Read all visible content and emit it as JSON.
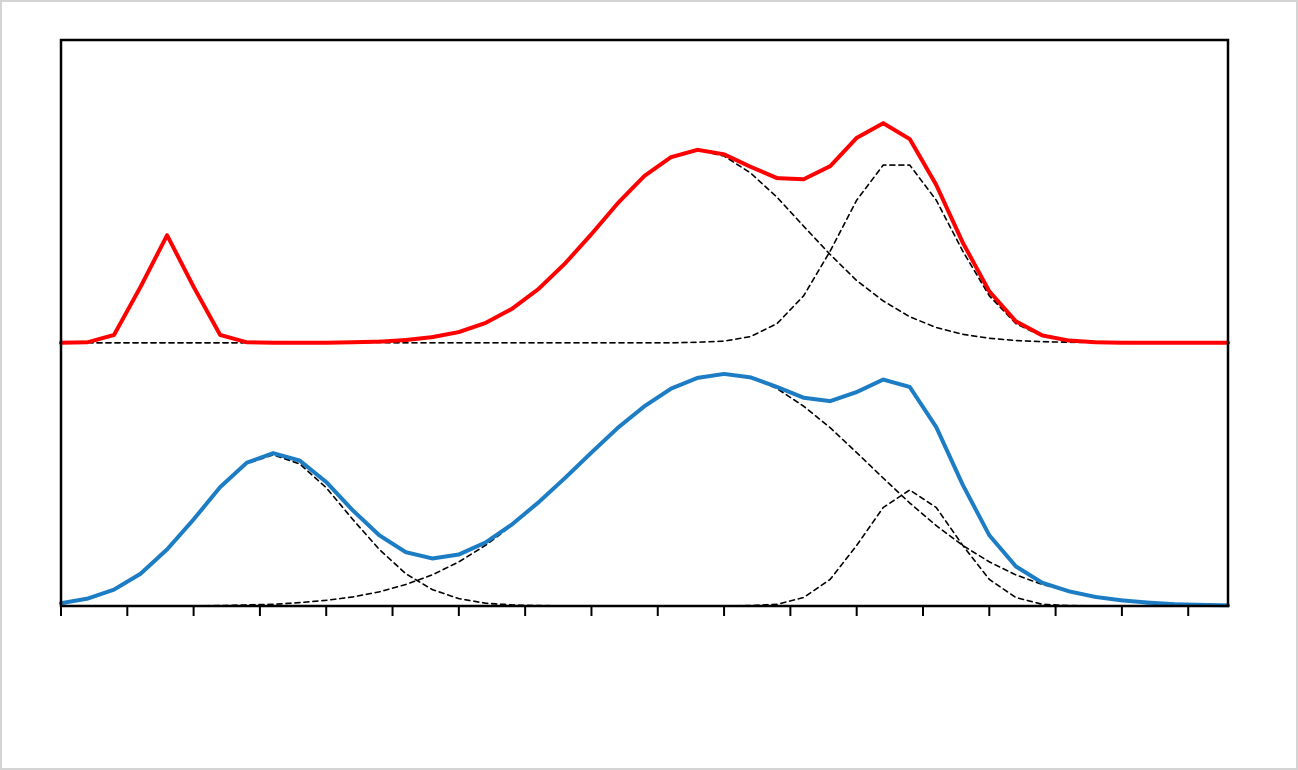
{
  "chart_data": {
    "type": "line",
    "x": [
      0,
      0.4,
      0.8,
      1.2,
      1.6,
      2.0,
      2.4,
      2.8,
      3.2,
      3.6,
      4.0,
      4.4,
      4.8,
      5.2,
      5.6,
      6.0,
      6.4,
      6.8,
      7.2,
      7.6,
      8.0,
      8.4,
      8.8,
      9.2,
      9.6,
      10.0,
      10.4,
      10.8,
      11.2,
      11.6,
      12.0,
      12.4,
      12.8,
      13.2,
      13.6,
      14.0,
      14.4,
      14.8,
      15.2,
      15.6,
      16.0,
      16.4,
      16.8,
      17.2,
      17.6
    ],
    "xlim": [
      0,
      17.6
    ],
    "xticks": [
      0,
      1,
      2,
      3,
      4,
      5,
      6,
      7,
      8,
      9,
      10,
      11,
      12,
      13,
      14,
      15,
      16,
      17
    ],
    "ylim": [
      0,
      100
    ],
    "series": [
      {
        "color": "#000000",
        "line_style": "dashed",
        "values": [
          46.5,
          46.5,
          46.5,
          46.5,
          46.5,
          46.5,
          46.5,
          46.5,
          46.5,
          46.5,
          46.5,
          46.6,
          46.7,
          47.0,
          47.5,
          48.4,
          50.0,
          52.5,
          56.0,
          60.5,
          65.7,
          71.2,
          76.0,
          79.3,
          80.5,
          79.5,
          76.5,
          72.2,
          67.1,
          62.1,
          57.5,
          53.9,
          51.1,
          49.2,
          48.0,
          47.3,
          46.9,
          46.7,
          46.6,
          46.5,
          46.5,
          46.5,
          46.5,
          46.5,
          46.5
        ]
      },
      {
        "color": "#000000",
        "line_style": "dashed",
        "values": [
          46.5,
          46.5,
          46.5,
          46.5,
          46.5,
          46.5,
          46.5,
          46.5,
          46.5,
          46.5,
          46.5,
          46.5,
          46.5,
          46.5,
          46.5,
          46.5,
          46.5,
          46.5,
          46.5,
          46.5,
          46.5,
          46.5,
          46.5,
          46.5,
          46.6,
          46.8,
          47.6,
          49.9,
          54.8,
          62.7,
          71.7,
          77.9,
          77.9,
          71.7,
          62.7,
          54.8,
          49.9,
          47.6,
          46.8,
          46.6,
          46.5,
          46.5,
          46.5,
          46.5,
          46.5
        ]
      },
      {
        "color": "#000000",
        "line_style": "dashed",
        "values": [
          0.5,
          1.3,
          2.9,
          5.7,
          10.0,
          15.3,
          20.9,
          25.1,
          26.7,
          25.1,
          20.9,
          15.3,
          10.0,
          5.7,
          2.9,
          1.3,
          0.5,
          0.2,
          0.1,
          0,
          0,
          0,
          0,
          0,
          0,
          0,
          0,
          0,
          0,
          0,
          0,
          0,
          0,
          0,
          0,
          0,
          0,
          0,
          0,
          0,
          0,
          0,
          0,
          0,
          0
        ]
      },
      {
        "color": "#000000",
        "line_style": "dashed",
        "values": [
          0,
          0,
          0,
          0,
          0,
          0,
          0.1,
          0.2,
          0.3,
          0.6,
          1.0,
          1.6,
          2.5,
          3.8,
          5.5,
          7.8,
          10.7,
          14.2,
          18.2,
          22.6,
          27.1,
          31.5,
          35.3,
          38.4,
          40.3,
          41.0,
          40.3,
          38.4,
          35.3,
          31.5,
          27.1,
          22.6,
          18.2,
          14.2,
          10.7,
          7.8,
          5.5,
          3.8,
          2.5,
          1.6,
          1.0,
          0.6,
          0.3,
          0.2,
          0.1
        ]
      },
      {
        "color": "#000000",
        "line_style": "dashed",
        "values": [
          0,
          0,
          0,
          0,
          0,
          0,
          0,
          0,
          0,
          0,
          0,
          0,
          0,
          0,
          0,
          0,
          0,
          0,
          0,
          0,
          0,
          0,
          0,
          0,
          0,
          0,
          0.1,
          0.3,
          1.5,
          4.7,
          10.7,
          17.4,
          20.5,
          17.4,
          10.7,
          4.7,
          1.5,
          0.3,
          0.1,
          0,
          0,
          0,
          0,
          0,
          0
        ]
      },
      {
        "color": "#ff0000",
        "line_style": "solid",
        "values": [
          46.5,
          46.6,
          47.9,
          56.4,
          65.5,
          56.4,
          47.9,
          46.6,
          46.5,
          46.5,
          46.5,
          46.6,
          46.7,
          47.0,
          47.5,
          48.4,
          50.0,
          52.5,
          56.0,
          60.5,
          65.7,
          71.2,
          76.0,
          79.3,
          80.6,
          79.8,
          77.6,
          75.6,
          75.4,
          77.7,
          82.7,
          85.3,
          82.5,
          74.4,
          64.2,
          55.6,
          50.3,
          47.8,
          46.9,
          46.6,
          46.5,
          46.5,
          46.5,
          46.5,
          46.5
        ]
      },
      {
        "color": "#1c7cc4",
        "line_style": "solid",
        "values": [
          0.5,
          1.3,
          2.9,
          5.7,
          10.0,
          15.3,
          21.0,
          25.3,
          27.0,
          25.7,
          21.9,
          16.9,
          12.5,
          9.5,
          8.4,
          9.1,
          11.2,
          14.4,
          18.3,
          22.6,
          27.1,
          31.5,
          35.3,
          38.4,
          40.3,
          41.0,
          40.4,
          38.7,
          36.8,
          36.2,
          37.8,
          40.0,
          38.7,
          31.6,
          21.4,
          12.5,
          7.0,
          4.1,
          2.6,
          1.6,
          1.0,
          0.6,
          0.3,
          0.2,
          0.1
        ]
      }
    ]
  }
}
